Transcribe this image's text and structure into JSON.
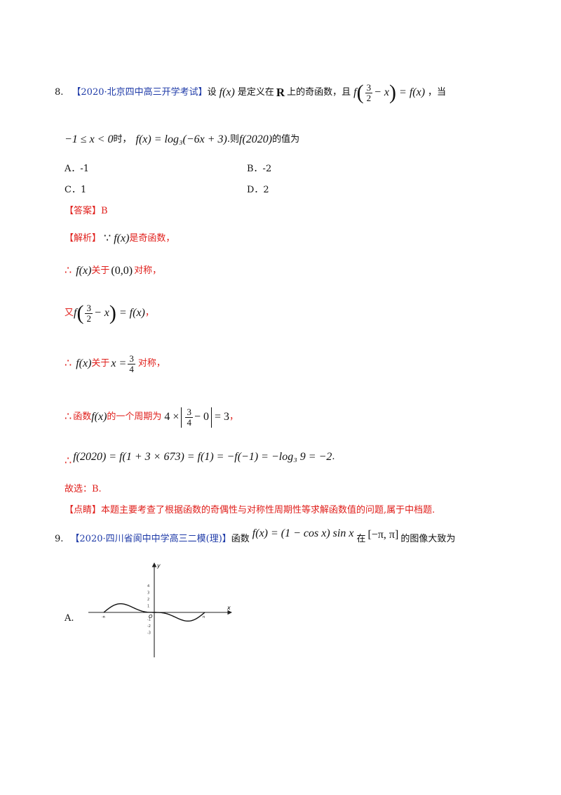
{
  "q8": {
    "num": "8.",
    "source": "【2020·北京四中高三开学考试】",
    "t1": "设",
    "fx": "f(x)",
    "t2": "是定义在",
    "R": "R",
    "t3": "上的奇函数，且",
    "frac_num": "3",
    "frac_den": "2",
    "minus_x": "− x",
    "eq_fx": "= f(x)",
    "t4": "，当",
    "line2_cond": "−1 ≤ x < 0",
    "t5": "时，",
    "line2_formula": "f(x) = log₃(−6x + 3)",
    "t6": ".则",
    "f2020": "f(2020)",
    "t7": "的值为",
    "optA": "A．-1",
    "optB": "B．-2",
    "optC": "C．1",
    "optD": "D．2",
    "answer_tag": "【答案】",
    "answer": "B",
    "analysis_tag": "【解析】",
    "because": "∵",
    "a1_fx": "f(x)",
    "a1_text": "是奇函数，",
    "therefore": "∴",
    "a2_fx": "f(x)",
    "a2_text1": "关于",
    "a2_point": "(0,0)",
    "a2_text2": "对称，",
    "a3_you": "又",
    "a3_f": "f",
    "a3_num": "3",
    "a3_den": "2",
    "a3_rest": "− x",
    "a3_eq": "= f(x)",
    "a3_comma": "，",
    "a4_fx": "f(x)",
    "a4_text1": "关于",
    "a4_x": "x =",
    "a4_num": "3",
    "a4_den": "4",
    "a4_text2": "对称，",
    "a5_text1": "函数",
    "a5_fx": "f(x)",
    "a5_text2": "的一个周期为",
    "a5_four": "4 ×",
    "a5_num": "3",
    "a5_den": "4",
    "a5_minus0": "− 0",
    "a5_eq": "= 3",
    "a5_comma": "，",
    "a6_formula": "f(2020) = f(1 + 3 × 673) = f(1) = −f(−1) = −log₃ 9 = −2",
    "a6_dot": ".",
    "a7": "故选：B.",
    "comment_tag": "【点睛】",
    "comment": "本题主要考查了根据函数的奇偶性与对称性周期性等求解函数值的问题,属于中档题."
  },
  "q9": {
    "num": "9.",
    "source": "【2020·四川省阆中中学高三二模(理)】",
    "t1": "函数",
    "formula": "f(x) = (1 − cos x) sin x",
    "t2": "在",
    "interval": "[−π, π]",
    "t3": "的图像大致为",
    "optA": "A."
  },
  "graph": {
    "x_label": "x",
    "y_label": "y",
    "origin": "O",
    "x_ticks": [
      "-π",
      "π"
    ],
    "y_ticks": [
      "4",
      "3",
      "2",
      "1",
      "-1",
      "-2",
      "-3"
    ]
  },
  "colors": {
    "source_blue": "#1f3ba8",
    "analysis_red": "#e0201c"
  }
}
